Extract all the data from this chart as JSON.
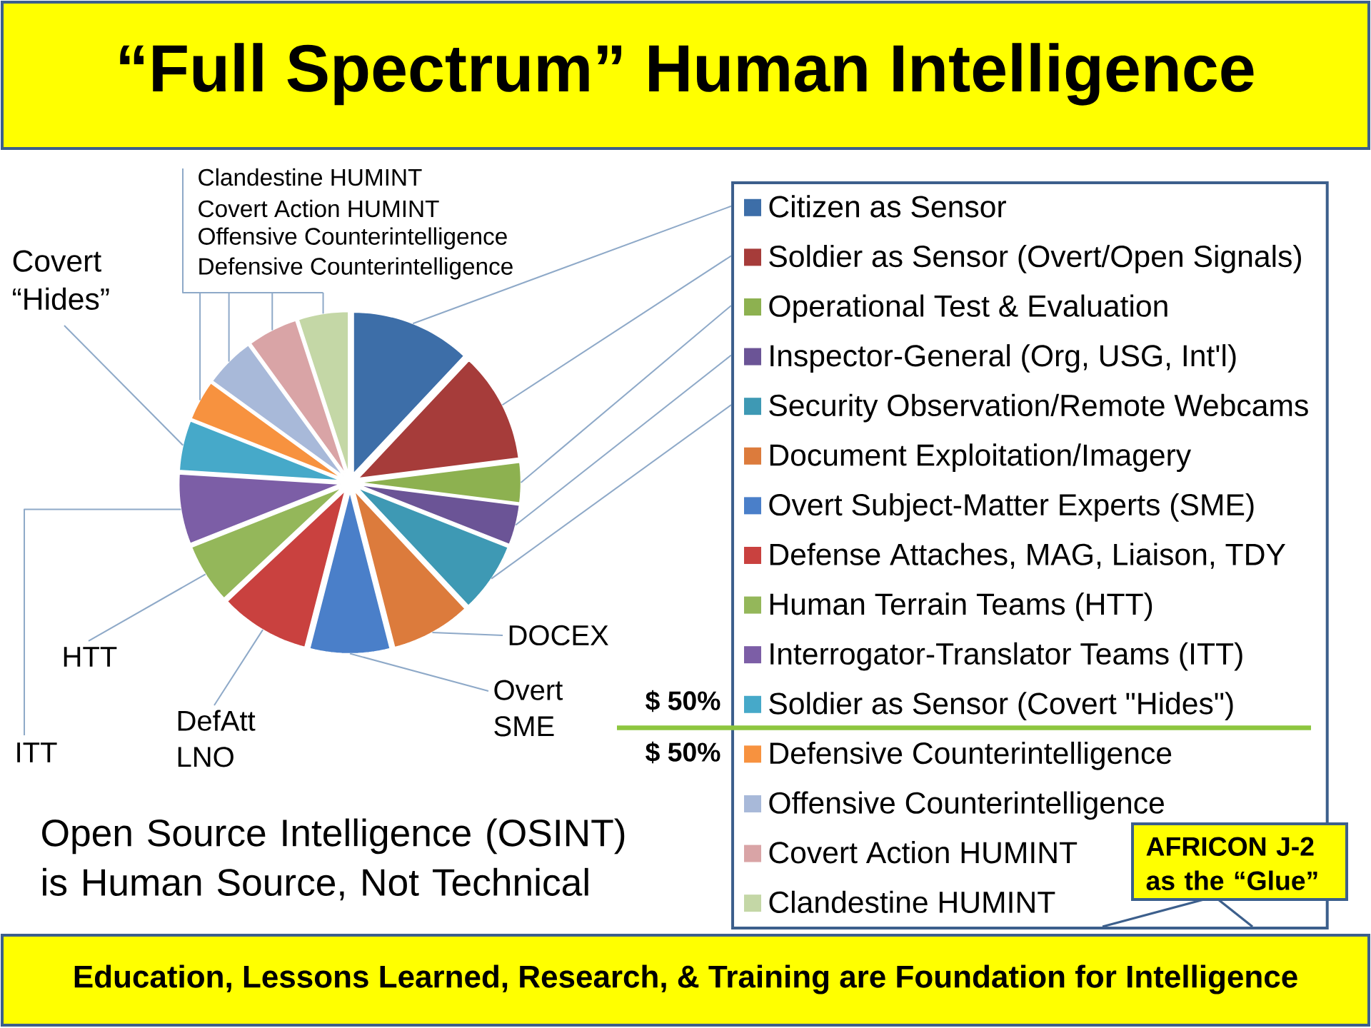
{
  "chart_data": {
    "type": "pie",
    "title": "“Full Spectrum” Human Intelligence",
    "categories": [
      "Citizen as Sensor",
      "Soldier as Sensor (Overt/Open Signals)",
      "Operational Test & Evaluation",
      "Inspector-General (Org, USG, Int'l)",
      "Security Observation/Remote Webcams",
      "Document Exploitation/Imagery",
      "Overt Subject-Matter Experts (SME)",
      "Defense Attaches, MAG, Liaison, TDY",
      "Human Terrain Teams (HTT)",
      "Interrogator-Translator Teams (ITT)",
      "Soldier as Sensor (Covert \"Hides\")",
      "Defensive Counterintelligence",
      "Offensive Counterintelligence",
      "Covert Action HUMINT",
      "Clandestine HUMINT"
    ],
    "values": [
      12,
      11,
      4,
      4,
      7,
      8,
      8,
      9,
      6,
      7,
      5,
      4,
      5,
      5,
      5
    ],
    "colors": [
      "#3d6ea8",
      "#a63c3a",
      "#8db150",
      "#6b5496",
      "#3e99b4",
      "#dc7b3c",
      "#4a7fc9",
      "#c9413f",
      "#94b75a",
      "#7c5ea6",
      "#46a9c9",
      "#f7923f",
      "#a8b9d9",
      "#d9a4a6",
      "#c4d7a6"
    ],
    "legend": "right",
    "annotations": [
      "Clandestine HUMINT",
      "Covert Action HUMINT",
      "Offensive Counterintelligence",
      "Defensive Counterintelligence",
      "Covert “Hides”",
      "HTT",
      "ITT",
      "DefAtt LNO",
      "Overt SME",
      "DOCEX",
      "$ 50%",
      "$ 50%",
      "Open Source Intelligence (OSINT) is Human Source, Not Technical",
      "AFRICON J-2 as the “Glue”",
      "Education, Lessons Learned, Research, & Training are Foundation for Intelligence"
    ]
  }
}
